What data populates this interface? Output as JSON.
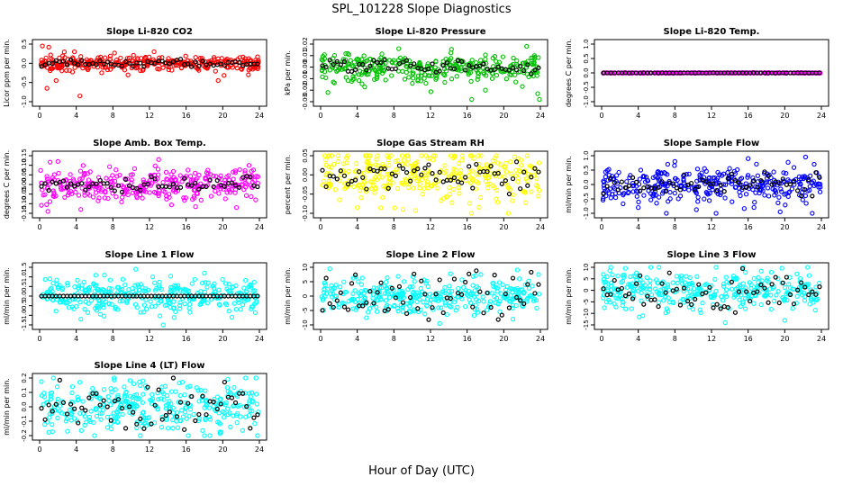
{
  "page": {
    "title": "SPL_101228  Slope Diagnostics",
    "xlabel": "Hour of Day (UTC)"
  },
  "chart_data": [
    {
      "type": "scatter",
      "title": "Slope Li-820 CO2",
      "ylabel": "Licor ppm per min.",
      "xlim": [
        0,
        24
      ],
      "ylim": [
        -1.0,
        0.5
      ],
      "yticks": [
        -1.0,
        -0.5,
        0.0,
        0.5
      ],
      "ytick_labels": [
        "-1.0",
        "-0.5",
        "0.0",
        "0.5"
      ],
      "xticks": [
        0,
        4,
        8,
        12,
        16,
        20,
        24
      ],
      "color": "#ff0000",
      "spread": 0.09,
      "outliers": [
        [
          0.8,
          -0.65
        ],
        [
          0.3,
          0.45
        ],
        [
          1.0,
          0.42
        ],
        [
          1.8,
          -0.45
        ],
        [
          4.4,
          -0.85
        ],
        [
          19.5,
          -0.45
        ],
        [
          3.8,
          0.3
        ],
        [
          12.5,
          0.3
        ],
        [
          22.8,
          -0.3
        ]
      ],
      "black_spread": 0.05
    },
    {
      "type": "scatter",
      "title": "Slope Li-820 Pressure",
      "ylabel": "kPa per min.",
      "xlim": [
        0,
        24
      ],
      "ylim": [
        -0.03,
        0.02
      ],
      "yticks": [
        -0.03,
        -0.02,
        -0.01,
        0.0,
        0.01,
        0.02
      ],
      "ytick_labels": [
        "-0.03",
        "-0.02",
        "-0.01",
        "0.00",
        "0.01",
        "0.02"
      ],
      "xticks": [
        0,
        4,
        8,
        12,
        16,
        20,
        24
      ],
      "color": "#00c000",
      "spread": 0.0065,
      "outliers": [
        [
          0.8,
          -0.022
        ],
        [
          16.5,
          -0.028
        ],
        [
          23.9,
          -0.028
        ],
        [
          22.5,
          0.018
        ],
        [
          18.0,
          -0.02
        ],
        [
          11.5,
          -0.014
        ]
      ],
      "black_spread": 0.003
    },
    {
      "type": "scatter",
      "title": "Slope Li-820 Temp.",
      "ylabel": "degrees C per min.",
      "xlim": [
        0,
        24
      ],
      "ylim": [
        -1.0,
        1.0
      ],
      "yticks": [
        -1.0,
        -0.5,
        0.0,
        0.5,
        1.0
      ],
      "ytick_labels": [
        "-1.0",
        "-0.5",
        "0.0",
        "0.5",
        "1.0"
      ],
      "xticks": [
        0,
        4,
        8,
        12,
        16,
        20,
        24
      ],
      "color": "#ff00ff",
      "spread": 0.004,
      "outliers": [],
      "black_spread": 0.002
    },
    {
      "type": "scatter",
      "title": "Slope Amb. Box Temp.",
      "ylabel": "degrees C per min.",
      "xlim": [
        0,
        24
      ],
      "ylim": [
        -0.15,
        0.15
      ],
      "yticks": [
        -0.15,
        -0.1,
        -0.05,
        0.0,
        0.05,
        0.1,
        0.15
      ],
      "ytick_labels": [
        "-0.15",
        "-0.10",
        "-0.05",
        "0.00",
        "0.05",
        "0.10",
        "0.15"
      ],
      "xticks": [
        0,
        4,
        8,
        12,
        16,
        20,
        24
      ],
      "color": "#ff00ff",
      "spread": 0.045,
      "outliers": [
        [
          0.9,
          -0.14
        ],
        [
          4.5,
          -0.13
        ],
        [
          2.0,
          0.12
        ],
        [
          13.0,
          0.13
        ],
        [
          21.5,
          -0.12
        ],
        [
          23.6,
          -0.08
        ]
      ],
      "black_spread": 0.02
    },
    {
      "type": "scatter",
      "title": "Slope Gas Stream RH",
      "ylabel": "percent per min.",
      "xlim": [
        0,
        24
      ],
      "ylim": [
        -0.1,
        0.05
      ],
      "yticks": [
        -0.1,
        -0.05,
        0.0,
        0.05
      ],
      "ytick_labels": [
        "-0.10",
        "-0.05",
        "0.00",
        "0.05"
      ],
      "xticks": [
        0,
        4,
        8,
        12,
        16,
        20,
        24
      ],
      "color": "#ffff00",
      "spread": 0.032,
      "outliers": [
        [
          1.2,
          0.07
        ],
        [
          4.0,
          -0.085
        ],
        [
          17.5,
          0.07
        ],
        [
          20.5,
          -0.1
        ],
        [
          9.0,
          -0.09
        ]
      ],
      "black_spread": 0.02
    },
    {
      "type": "scatter",
      "title": "Slope Sample Flow",
      "ylabel": "ml/min per min.",
      "xlim": [
        0,
        24
      ],
      "ylim": [
        -1.0,
        1.0
      ],
      "yticks": [
        -1.0,
        -0.5,
        0.0,
        0.5,
        1.0
      ],
      "ytick_labels": [
        "-1.0",
        "-0.5",
        "0.0",
        "0.5",
        "1.0"
      ],
      "xticks": [
        0,
        4,
        8,
        12,
        16,
        20,
        24
      ],
      "color": "#0000ff",
      "spread": 0.3,
      "outliers": [
        [
          4.0,
          -0.8
        ],
        [
          12.5,
          -1.0
        ],
        [
          19.5,
          -0.95
        ],
        [
          23.0,
          -1.1
        ],
        [
          16.0,
          0.9
        ],
        [
          8.0,
          0.8
        ]
      ],
      "black_spread": 0.2
    },
    {
      "type": "scatter",
      "title": "Slope Line 1 Flow",
      "ylabel": "ml/min per min.",
      "xlim": [
        0,
        24
      ],
      "ylim": [
        -1.5,
        1.5
      ],
      "yticks": [
        -1.5,
        -1.0,
        -0.5,
        0.0,
        0.5,
        1.0,
        1.5
      ],
      "ytick_labels": [
        "-1.5",
        "-1.0",
        "-0.5",
        "0.0",
        "0.5",
        "1.0",
        "1.5"
      ],
      "xticks": [
        0,
        4,
        8,
        12,
        16,
        20,
        24
      ],
      "color": "#00ffff",
      "spread": 0.45,
      "outliers": [
        [
          10.5,
          1.4
        ],
        [
          13.5,
          -1.5
        ],
        [
          18.0,
          1.2
        ],
        [
          4.5,
          -1.2
        ],
        [
          21.0,
          -1.1
        ]
      ],
      "black_spread": 0.0
    },
    {
      "type": "scatter",
      "title": "Slope Line 2 Flow",
      "ylabel": "ml/min per min.",
      "xlim": [
        0,
        24
      ],
      "ylim": [
        -10,
        10
      ],
      "yticks": [
        -10,
        -5,
        0,
        5,
        10
      ],
      "ytick_labels": [
        "-10",
        "-5",
        "0",
        "5",
        "10"
      ],
      "xticks": [
        0,
        4,
        8,
        12,
        16,
        20,
        24
      ],
      "color": "#00ffff",
      "spread": 3.0,
      "outliers": [
        [
          1.0,
          9.5
        ],
        [
          5.0,
          -7.5
        ],
        [
          13.0,
          -9.5
        ],
        [
          17.5,
          7.5
        ],
        [
          21.0,
          -8.0
        ],
        [
          23.8,
          7.5
        ]
      ],
      "black_spread": 4.0
    },
    {
      "type": "scatter",
      "title": "Slope Line 3 Flow",
      "ylabel": "ml/min per min.",
      "xlim": [
        0,
        24
      ],
      "ylim": [
        -15,
        10
      ],
      "yticks": [
        -15,
        -10,
        -5,
        0,
        5,
        10
      ],
      "ytick_labels": [
        "-15",
        "-10",
        "-5",
        "0",
        "5",
        "10"
      ],
      "xticks": [
        0,
        4,
        8,
        12,
        16,
        20,
        24
      ],
      "color": "#00ffff",
      "spread": 4.0,
      "outliers": [
        [
          1.0,
          12
        ],
        [
          4.5,
          -11
        ],
        [
          12.5,
          12
        ],
        [
          13.5,
          -14
        ],
        [
          20.0,
          -13
        ],
        [
          22.5,
          12
        ]
      ],
      "black_spread": 5.0
    },
    {
      "type": "scatter",
      "title": "Slope Line 4 (LT) Flow",
      "ylabel": "ml/min per min.",
      "xlim": [
        0,
        24
      ],
      "ylim": [
        -0.2,
        0.2
      ],
      "yticks": [
        -0.2,
        -0.1,
        0.0,
        0.1,
        0.2
      ],
      "ytick_labels": [
        "-0.2",
        "-0.1",
        "0.0",
        "0.1",
        "0.2"
      ],
      "xticks": [
        0,
        4,
        8,
        12,
        16,
        20,
        24
      ],
      "color": "#00ffff",
      "spread": 0.09,
      "outliers": [
        [
          1.5,
          0.22
        ],
        [
          22.5,
          0.25
        ],
        [
          11.0,
          -0.25
        ],
        [
          6.0,
          -0.22
        ],
        [
          18.0,
          -0.2
        ]
      ],
      "black_spread": 0.07
    }
  ]
}
